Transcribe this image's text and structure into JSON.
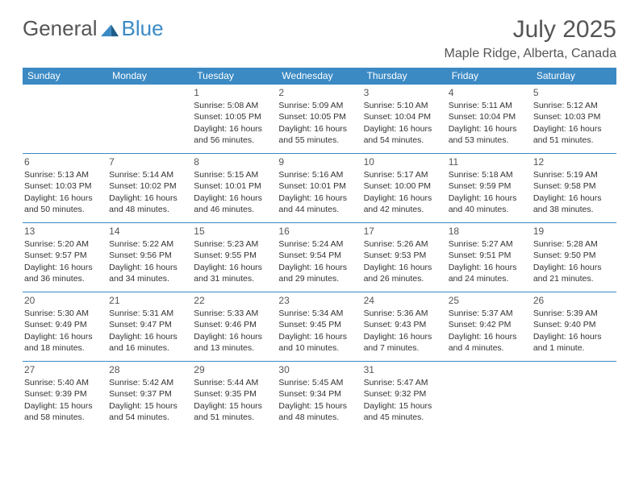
{
  "brand": {
    "part1": "General",
    "part2": "Blue"
  },
  "title": "July 2025",
  "location": "Maple Ridge, Alberta, Canada",
  "colors": {
    "header_bg": "#3b8ac4",
    "header_text": "#ffffff",
    "border": "#3b8ac4",
    "text": "#333333",
    "title": "#555555",
    "background": "#ffffff"
  },
  "weekdays": [
    "Sunday",
    "Monday",
    "Tuesday",
    "Wednesday",
    "Thursday",
    "Friday",
    "Saturday"
  ],
  "weeks": [
    [
      null,
      null,
      {
        "n": "1",
        "sr": "Sunrise: 5:08 AM",
        "ss": "Sunset: 10:05 PM",
        "d1": "Daylight: 16 hours",
        "d2": "and 56 minutes."
      },
      {
        "n": "2",
        "sr": "Sunrise: 5:09 AM",
        "ss": "Sunset: 10:05 PM",
        "d1": "Daylight: 16 hours",
        "d2": "and 55 minutes."
      },
      {
        "n": "3",
        "sr": "Sunrise: 5:10 AM",
        "ss": "Sunset: 10:04 PM",
        "d1": "Daylight: 16 hours",
        "d2": "and 54 minutes."
      },
      {
        "n": "4",
        "sr": "Sunrise: 5:11 AM",
        "ss": "Sunset: 10:04 PM",
        "d1": "Daylight: 16 hours",
        "d2": "and 53 minutes."
      },
      {
        "n": "5",
        "sr": "Sunrise: 5:12 AM",
        "ss": "Sunset: 10:03 PM",
        "d1": "Daylight: 16 hours",
        "d2": "and 51 minutes."
      }
    ],
    [
      {
        "n": "6",
        "sr": "Sunrise: 5:13 AM",
        "ss": "Sunset: 10:03 PM",
        "d1": "Daylight: 16 hours",
        "d2": "and 50 minutes."
      },
      {
        "n": "7",
        "sr": "Sunrise: 5:14 AM",
        "ss": "Sunset: 10:02 PM",
        "d1": "Daylight: 16 hours",
        "d2": "and 48 minutes."
      },
      {
        "n": "8",
        "sr": "Sunrise: 5:15 AM",
        "ss": "Sunset: 10:01 PM",
        "d1": "Daylight: 16 hours",
        "d2": "and 46 minutes."
      },
      {
        "n": "9",
        "sr": "Sunrise: 5:16 AM",
        "ss": "Sunset: 10:01 PM",
        "d1": "Daylight: 16 hours",
        "d2": "and 44 minutes."
      },
      {
        "n": "10",
        "sr": "Sunrise: 5:17 AM",
        "ss": "Sunset: 10:00 PM",
        "d1": "Daylight: 16 hours",
        "d2": "and 42 minutes."
      },
      {
        "n": "11",
        "sr": "Sunrise: 5:18 AM",
        "ss": "Sunset: 9:59 PM",
        "d1": "Daylight: 16 hours",
        "d2": "and 40 minutes."
      },
      {
        "n": "12",
        "sr": "Sunrise: 5:19 AM",
        "ss": "Sunset: 9:58 PM",
        "d1": "Daylight: 16 hours",
        "d2": "and 38 minutes."
      }
    ],
    [
      {
        "n": "13",
        "sr": "Sunrise: 5:20 AM",
        "ss": "Sunset: 9:57 PM",
        "d1": "Daylight: 16 hours",
        "d2": "and 36 minutes."
      },
      {
        "n": "14",
        "sr": "Sunrise: 5:22 AM",
        "ss": "Sunset: 9:56 PM",
        "d1": "Daylight: 16 hours",
        "d2": "and 34 minutes."
      },
      {
        "n": "15",
        "sr": "Sunrise: 5:23 AM",
        "ss": "Sunset: 9:55 PM",
        "d1": "Daylight: 16 hours",
        "d2": "and 31 minutes."
      },
      {
        "n": "16",
        "sr": "Sunrise: 5:24 AM",
        "ss": "Sunset: 9:54 PM",
        "d1": "Daylight: 16 hours",
        "d2": "and 29 minutes."
      },
      {
        "n": "17",
        "sr": "Sunrise: 5:26 AM",
        "ss": "Sunset: 9:53 PM",
        "d1": "Daylight: 16 hours",
        "d2": "and 26 minutes."
      },
      {
        "n": "18",
        "sr": "Sunrise: 5:27 AM",
        "ss": "Sunset: 9:51 PM",
        "d1": "Daylight: 16 hours",
        "d2": "and 24 minutes."
      },
      {
        "n": "19",
        "sr": "Sunrise: 5:28 AM",
        "ss": "Sunset: 9:50 PM",
        "d1": "Daylight: 16 hours",
        "d2": "and 21 minutes."
      }
    ],
    [
      {
        "n": "20",
        "sr": "Sunrise: 5:30 AM",
        "ss": "Sunset: 9:49 PM",
        "d1": "Daylight: 16 hours",
        "d2": "and 18 minutes."
      },
      {
        "n": "21",
        "sr": "Sunrise: 5:31 AM",
        "ss": "Sunset: 9:47 PM",
        "d1": "Daylight: 16 hours",
        "d2": "and 16 minutes."
      },
      {
        "n": "22",
        "sr": "Sunrise: 5:33 AM",
        "ss": "Sunset: 9:46 PM",
        "d1": "Daylight: 16 hours",
        "d2": "and 13 minutes."
      },
      {
        "n": "23",
        "sr": "Sunrise: 5:34 AM",
        "ss": "Sunset: 9:45 PM",
        "d1": "Daylight: 16 hours",
        "d2": "and 10 minutes."
      },
      {
        "n": "24",
        "sr": "Sunrise: 5:36 AM",
        "ss": "Sunset: 9:43 PM",
        "d1": "Daylight: 16 hours",
        "d2": "and 7 minutes."
      },
      {
        "n": "25",
        "sr": "Sunrise: 5:37 AM",
        "ss": "Sunset: 9:42 PM",
        "d1": "Daylight: 16 hours",
        "d2": "and 4 minutes."
      },
      {
        "n": "26",
        "sr": "Sunrise: 5:39 AM",
        "ss": "Sunset: 9:40 PM",
        "d1": "Daylight: 16 hours",
        "d2": "and 1 minute."
      }
    ],
    [
      {
        "n": "27",
        "sr": "Sunrise: 5:40 AM",
        "ss": "Sunset: 9:39 PM",
        "d1": "Daylight: 15 hours",
        "d2": "and 58 minutes."
      },
      {
        "n": "28",
        "sr": "Sunrise: 5:42 AM",
        "ss": "Sunset: 9:37 PM",
        "d1": "Daylight: 15 hours",
        "d2": "and 54 minutes."
      },
      {
        "n": "29",
        "sr": "Sunrise: 5:44 AM",
        "ss": "Sunset: 9:35 PM",
        "d1": "Daylight: 15 hours",
        "d2": "and 51 minutes."
      },
      {
        "n": "30",
        "sr": "Sunrise: 5:45 AM",
        "ss": "Sunset: 9:34 PM",
        "d1": "Daylight: 15 hours",
        "d2": "and 48 minutes."
      },
      {
        "n": "31",
        "sr": "Sunrise: 5:47 AM",
        "ss": "Sunset: 9:32 PM",
        "d1": "Daylight: 15 hours",
        "d2": "and 45 minutes."
      },
      null,
      null
    ]
  ]
}
